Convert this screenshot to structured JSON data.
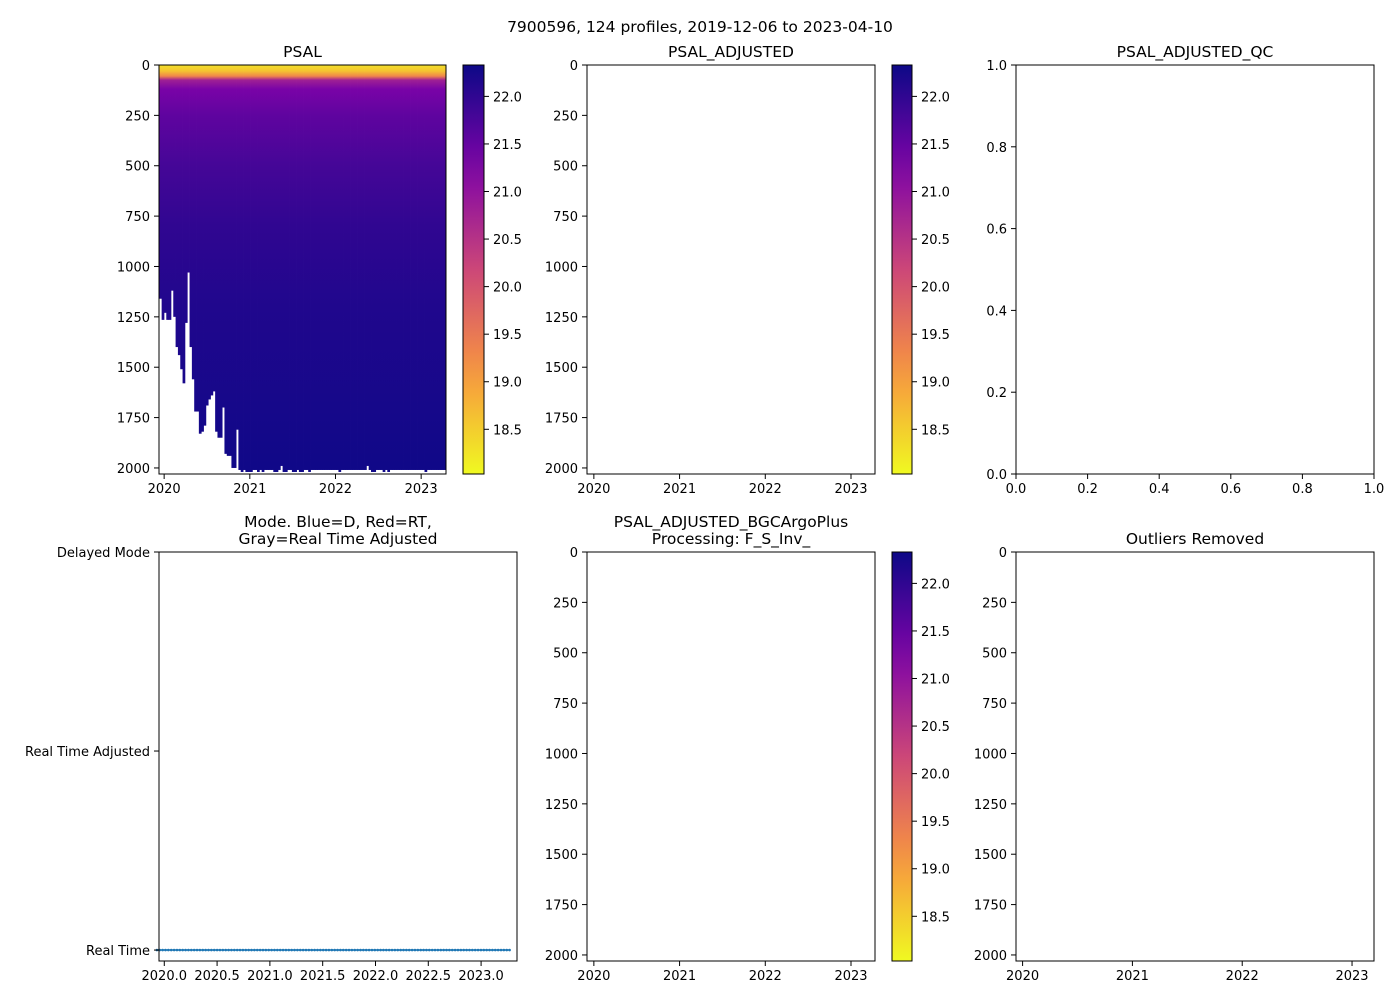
{
  "suptitle": "7900596, 124 profiles, 2019-12-06 to 2023-04-10",
  "colors": {
    "mode_series": "#1f77b4",
    "cmap": [
      "#0d0887",
      "#7e03a8",
      "#cc4778",
      "#f89540",
      "#f0f921"
    ]
  },
  "chart_data": [
    {
      "id": "psal",
      "type": "heatmap",
      "title": "PSAL",
      "xlim": [
        2019.94,
        2023.29
      ],
      "ylim": [
        2030,
        0
      ],
      "xticks": [
        2020,
        2021,
        2022,
        2023
      ],
      "xticklabels": [
        "2020",
        "2021",
        "2022",
        "2023"
      ],
      "yticks": [
        0,
        250,
        500,
        750,
        1000,
        1250,
        1500,
        1750,
        2000
      ],
      "yticklabels": [
        "0",
        "250",
        "500",
        "750",
        "1000",
        "1250",
        "1500",
        "1750",
        "2000"
      ],
      "n_profiles": 124,
      "time_start": 2019.93,
      "time_end": 2023.27,
      "mean_profile": [
        [
          0,
          18.3
        ],
        [
          30,
          18.6
        ],
        [
          55,
          19.3
        ],
        [
          75,
          20.8
        ],
        [
          120,
          21.3
        ],
        [
          250,
          21.55
        ],
        [
          500,
          21.8
        ],
        [
          800,
          22.0
        ],
        [
          1200,
          22.15
        ],
        [
          2000,
          22.3
        ]
      ],
      "profile_max_depth": [
        1140,
        1160,
        1265,
        1230,
        1265,
        1265,
        1120,
        1250,
        1400,
        1440,
        1510,
        1580,
        1280,
        1030,
        1400,
        1560,
        1720,
        1720,
        1830,
        1820,
        1790,
        1690,
        1660,
        1640,
        1620,
        1820,
        1850,
        1850,
        1700,
        1930,
        1940,
        1940,
        2000,
        2000,
        1810,
        2010,
        2020,
        2010,
        2020,
        2020,
        2020,
        2010,
        2010,
        2020,
        2010,
        2020,
        2010,
        2010,
        2010,
        2010,
        2020,
        2020,
        2010,
        1990,
        2020,
        2020,
        2010,
        2010,
        2020,
        2020,
        2010,
        2020,
        2020,
        2010,
        2010,
        2020,
        2010,
        2010,
        2010,
        2010,
        2010,
        2010,
        2010,
        2010,
        2010,
        2010,
        2010,
        2010,
        2020,
        2010,
        2010,
        2010,
        2010,
        2010,
        2010,
        2010,
        2010,
        2010,
        2010,
        2010,
        1990,
        2010,
        2020,
        2020,
        2010,
        2010,
        2010,
        2020,
        2010,
        2020,
        2010,
        2010,
        2010,
        2010,
        2010,
        2010,
        2010,
        2010,
        2010,
        2010,
        2010,
        2010,
        2010,
        2010,
        2010,
        2020,
        2010,
        2010,
        2010,
        2010,
        2010,
        2010,
        2010,
        2010
      ],
      "colorbar": {
        "vmin": 18.03,
        "vmax": 22.33,
        "ticks": [
          18.5,
          19.0,
          19.5,
          20.0,
          20.5,
          21.0,
          21.5,
          22.0
        ],
        "ticklabels": [
          "18.5",
          "19.0",
          "19.5",
          "20.0",
          "20.5",
          "21.0",
          "21.5",
          "22.0"
        ]
      }
    },
    {
      "id": "adj",
      "type": "heatmap",
      "title": "PSAL_ADJUSTED",
      "xlim": [
        2019.92,
        2023.28
      ],
      "ylim": [
        2030,
        0
      ],
      "xticks": [
        2020,
        2021,
        2022,
        2023
      ],
      "xticklabels": [
        "2020",
        "2021",
        "2022",
        "2023"
      ],
      "yticks": [
        0,
        250,
        500,
        750,
        1000,
        1250,
        1500,
        1750,
        2000
      ],
      "yticklabels": [
        "0",
        "250",
        "500",
        "750",
        "1000",
        "1250",
        "1500",
        "1750",
        "2000"
      ],
      "colorbar": {
        "vmin": 18.03,
        "vmax": 22.33,
        "ticks": [
          18.5,
          19.0,
          19.5,
          20.0,
          20.5,
          21.0,
          21.5,
          22.0
        ],
        "ticklabels": [
          "18.5",
          "19.0",
          "19.5",
          "20.0",
          "20.5",
          "21.0",
          "21.5",
          "22.0"
        ]
      }
    },
    {
      "id": "qc",
      "type": "scatter",
      "title": "PSAL_ADJUSTED_QC",
      "xlim": [
        0,
        1
      ],
      "ylim": [
        0,
        1
      ],
      "xticks": [
        0,
        0.2,
        0.4,
        0.6,
        0.8,
        1.0
      ],
      "xticklabels": [
        "0.0",
        "0.2",
        "0.4",
        "0.6",
        "0.8",
        "1.0"
      ],
      "yticks": [
        0,
        0.2,
        0.4,
        0.6,
        0.8,
        1.0
      ],
      "yticklabels": [
        "0.0",
        "0.2",
        "0.4",
        "0.6",
        "0.8",
        "1.0"
      ]
    },
    {
      "id": "mode",
      "type": "scatter",
      "title": [
        "Mode. Blue=D, Red=RT,",
        "Gray=Real Time Adjusted"
      ],
      "xlim": [
        2019.95,
        2023.34
      ],
      "ylim": [
        -0.055,
        2
      ],
      "xticks": [
        2020.0,
        2020.5,
        2021.0,
        2021.5,
        2022.0,
        2022.5,
        2023.0
      ],
      "xticklabels": [
        "2020.0",
        "2020.5",
        "2021.0",
        "2021.5",
        "2022.0",
        "2022.5",
        "2023.0"
      ],
      "yticks": [
        0,
        1,
        2
      ],
      "yticklabels": [
        "Real Time",
        "Real Time Adjusted",
        "Delayed Mode"
      ],
      "series": [
        {
          "name": "Real Time",
          "y": 0,
          "n_points": 124,
          "x_start": 2019.93,
          "x_end": 2023.27
        }
      ]
    },
    {
      "id": "bgc",
      "type": "heatmap",
      "title": [
        "PSAL_ADJUSTED_BGCArgoPlus",
        "Processing: F_S_Inv_"
      ],
      "xlim": [
        2019.92,
        2023.28
      ],
      "ylim": [
        2030,
        0
      ],
      "xticks": [
        2020,
        2021,
        2022,
        2023
      ],
      "xticklabels": [
        "2020",
        "2021",
        "2022",
        "2023"
      ],
      "yticks": [
        0,
        250,
        500,
        750,
        1000,
        1250,
        1500,
        1750,
        2000
      ],
      "yticklabels": [
        "0",
        "250",
        "500",
        "750",
        "1000",
        "1250",
        "1500",
        "1750",
        "2000"
      ],
      "colorbar": {
        "vmin": 18.03,
        "vmax": 22.33,
        "ticks": [
          18.5,
          19.0,
          19.5,
          20.0,
          20.5,
          21.0,
          21.5,
          22.0
        ],
        "ticklabels": [
          "18.5",
          "19.0",
          "19.5",
          "20.0",
          "20.5",
          "21.0",
          "21.5",
          "22.0"
        ]
      }
    },
    {
      "id": "out",
      "type": "heatmap",
      "title": "Outliers Removed",
      "xlim": [
        2019.94,
        2023.2
      ],
      "ylim": [
        2030,
        0
      ],
      "xticks": [
        2020,
        2021,
        2022,
        2023
      ],
      "xticklabels": [
        "2020",
        "2021",
        "2022",
        "2023"
      ],
      "yticks": [
        0,
        250,
        500,
        750,
        1000,
        1250,
        1500,
        1750,
        2000
      ],
      "yticklabels": [
        "0",
        "250",
        "500",
        "750",
        "1000",
        "1250",
        "1500",
        "1750",
        "2000"
      ]
    }
  ]
}
